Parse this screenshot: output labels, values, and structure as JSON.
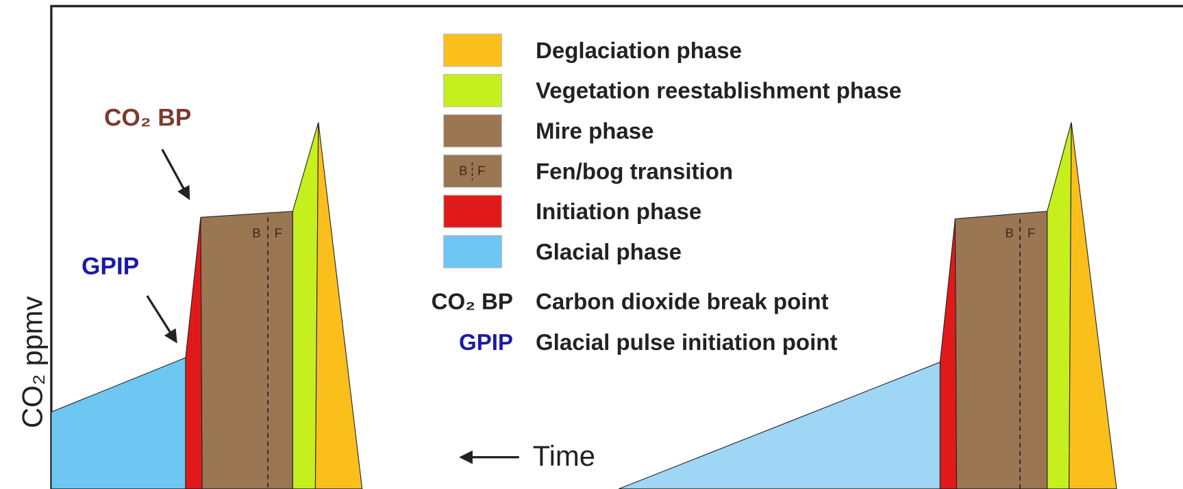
{
  "diagram": {
    "y_axis_label": "CO₂ ppmv",
    "time_label": "Time",
    "annotations": {
      "co2_bp": "CO₂ BP",
      "gpip": "GPIP"
    },
    "transition_labels": [
      "B",
      "F"
    ],
    "legend": {
      "items": [
        {
          "label": "Deglaciation phase",
          "color": "#fbbf1c"
        },
        {
          "label": "Vegetation reestablishment phase",
          "color": "#c6f01d"
        },
        {
          "label": "Mire phase",
          "color": "#9b7653"
        },
        {
          "label": "Fen/bog transition",
          "color": "#9b7653"
        },
        {
          "label": "Initiation phase",
          "color": "#e01a1a"
        },
        {
          "label": "Glacial phase",
          "color": "#6ec6f2"
        }
      ],
      "abbreviations": [
        {
          "abbr": "CO₂ BP",
          "meaning": "Carbon dioxide break point"
        },
        {
          "abbr": "GPIP",
          "meaning": "Glacial pulse initiation point"
        }
      ]
    }
  }
}
